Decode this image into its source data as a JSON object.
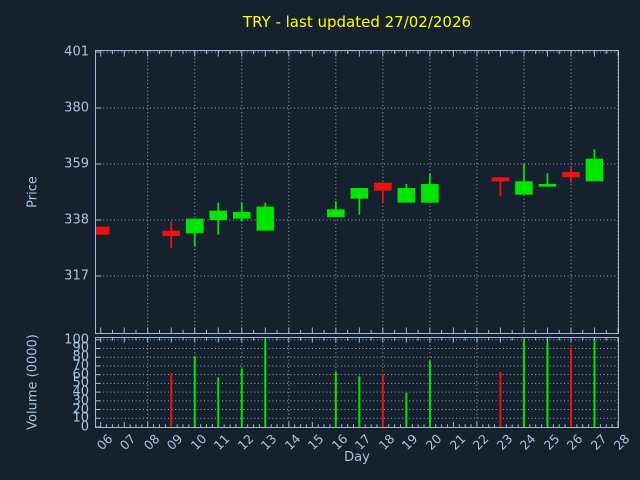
{
  "title": {
    "text": "TRY - last updated 27/02/2026"
  },
  "colors": {
    "background": "#16212f",
    "up": "#00e600",
    "down": "#ee1111",
    "frame": "#9db9d9",
    "grid": "#bcc3cb",
    "tick_label": "#a9c2de",
    "title": "#ffff00"
  },
  "price_axis": {
    "label": "Price",
    "ticks": [
      317,
      338,
      359,
      380,
      401
    ],
    "ylim": [
      295.6,
      401.4
    ]
  },
  "volume_axis": {
    "label": "Volume (0000)",
    "ticks": [
      0,
      10,
      20,
      30,
      40,
      50,
      60,
      70,
      80,
      90,
      100
    ],
    "ylim": [
      0,
      102
    ]
  },
  "x_axis": {
    "label": "Day",
    "first_day": 6,
    "tick_labels": [
      "06",
      "07",
      "08",
      "09",
      "10",
      "11",
      "12",
      "13",
      "14",
      "15",
      "16",
      "17",
      "18",
      "19",
      "20",
      "21",
      "22",
      "23",
      "24",
      "25",
      "26",
      "27",
      "28"
    ],
    "xlim": [
      5.8,
      28.0
    ],
    "gridline_step_days": 2
  },
  "chart_data": {
    "type": "candlestick+volume",
    "title": "TRY - last updated 27/02/2026",
    "xlabel": "Day",
    "ylabel_price": "Price",
    "ylabel_volume": "Volume (0000)",
    "grid": true,
    "price_ylim": [
      295.6,
      401.4
    ],
    "volume_ylim": [
      0,
      102
    ],
    "candles": [
      {
        "day": 6,
        "open": 335.5,
        "high": 335.5,
        "low": 332.5,
        "close": 332.5,
        "volume": 0
      },
      {
        "day": 9,
        "open": 334,
        "high": 337.5,
        "low": 327.5,
        "close": 332,
        "volume": 62
      },
      {
        "day": 10,
        "open": 333,
        "high": 338.5,
        "low": 328,
        "close": 338.5,
        "volume": 81
      },
      {
        "day": 11,
        "open": 338,
        "high": 344.5,
        "low": 332.5,
        "close": 341.5,
        "volume": 57
      },
      {
        "day": 12,
        "open": 338.5,
        "high": 344.5,
        "low": 337.5,
        "close": 341,
        "volume": 67
      },
      {
        "day": 13,
        "open": 334,
        "high": 344.5,
        "low": 334,
        "close": 343,
        "volume": 100
      },
      {
        "day": 16,
        "open": 339,
        "high": 345,
        "low": 339,
        "close": 342,
        "volume": 63
      },
      {
        "day": 17,
        "open": 346,
        "high": 350,
        "low": 340,
        "close": 350,
        "volume": 58
      },
      {
        "day": 18,
        "open": 352,
        "high": 352,
        "low": 344.5,
        "close": 349,
        "volume": 61
      },
      {
        "day": 19,
        "open": 344.5,
        "high": 351.5,
        "low": 344.5,
        "close": 350,
        "volume": 39
      },
      {
        "day": 20,
        "open": 344.5,
        "high": 355.5,
        "low": 344.5,
        "close": 351.5,
        "volume": 76
      },
      {
        "day": 23,
        "open": 354,
        "high": 354,
        "low": 347,
        "close": 352.5,
        "volume": 63
      },
      {
        "day": 24,
        "open": 347.5,
        "high": 359,
        "low": 347.5,
        "close": 352.5,
        "volume": 99
      },
      {
        "day": 25,
        "open": 350.5,
        "high": 355.5,
        "low": 350.5,
        "close": 351.5,
        "volume": 97
      },
      {
        "day": 26,
        "open": 356,
        "high": 358,
        "low": 352,
        "close": 354,
        "volume": 91
      },
      {
        "day": 27,
        "open": 352.5,
        "high": 364.5,
        "low": 352.5,
        "close": 361,
        "volume": 100
      }
    ]
  }
}
